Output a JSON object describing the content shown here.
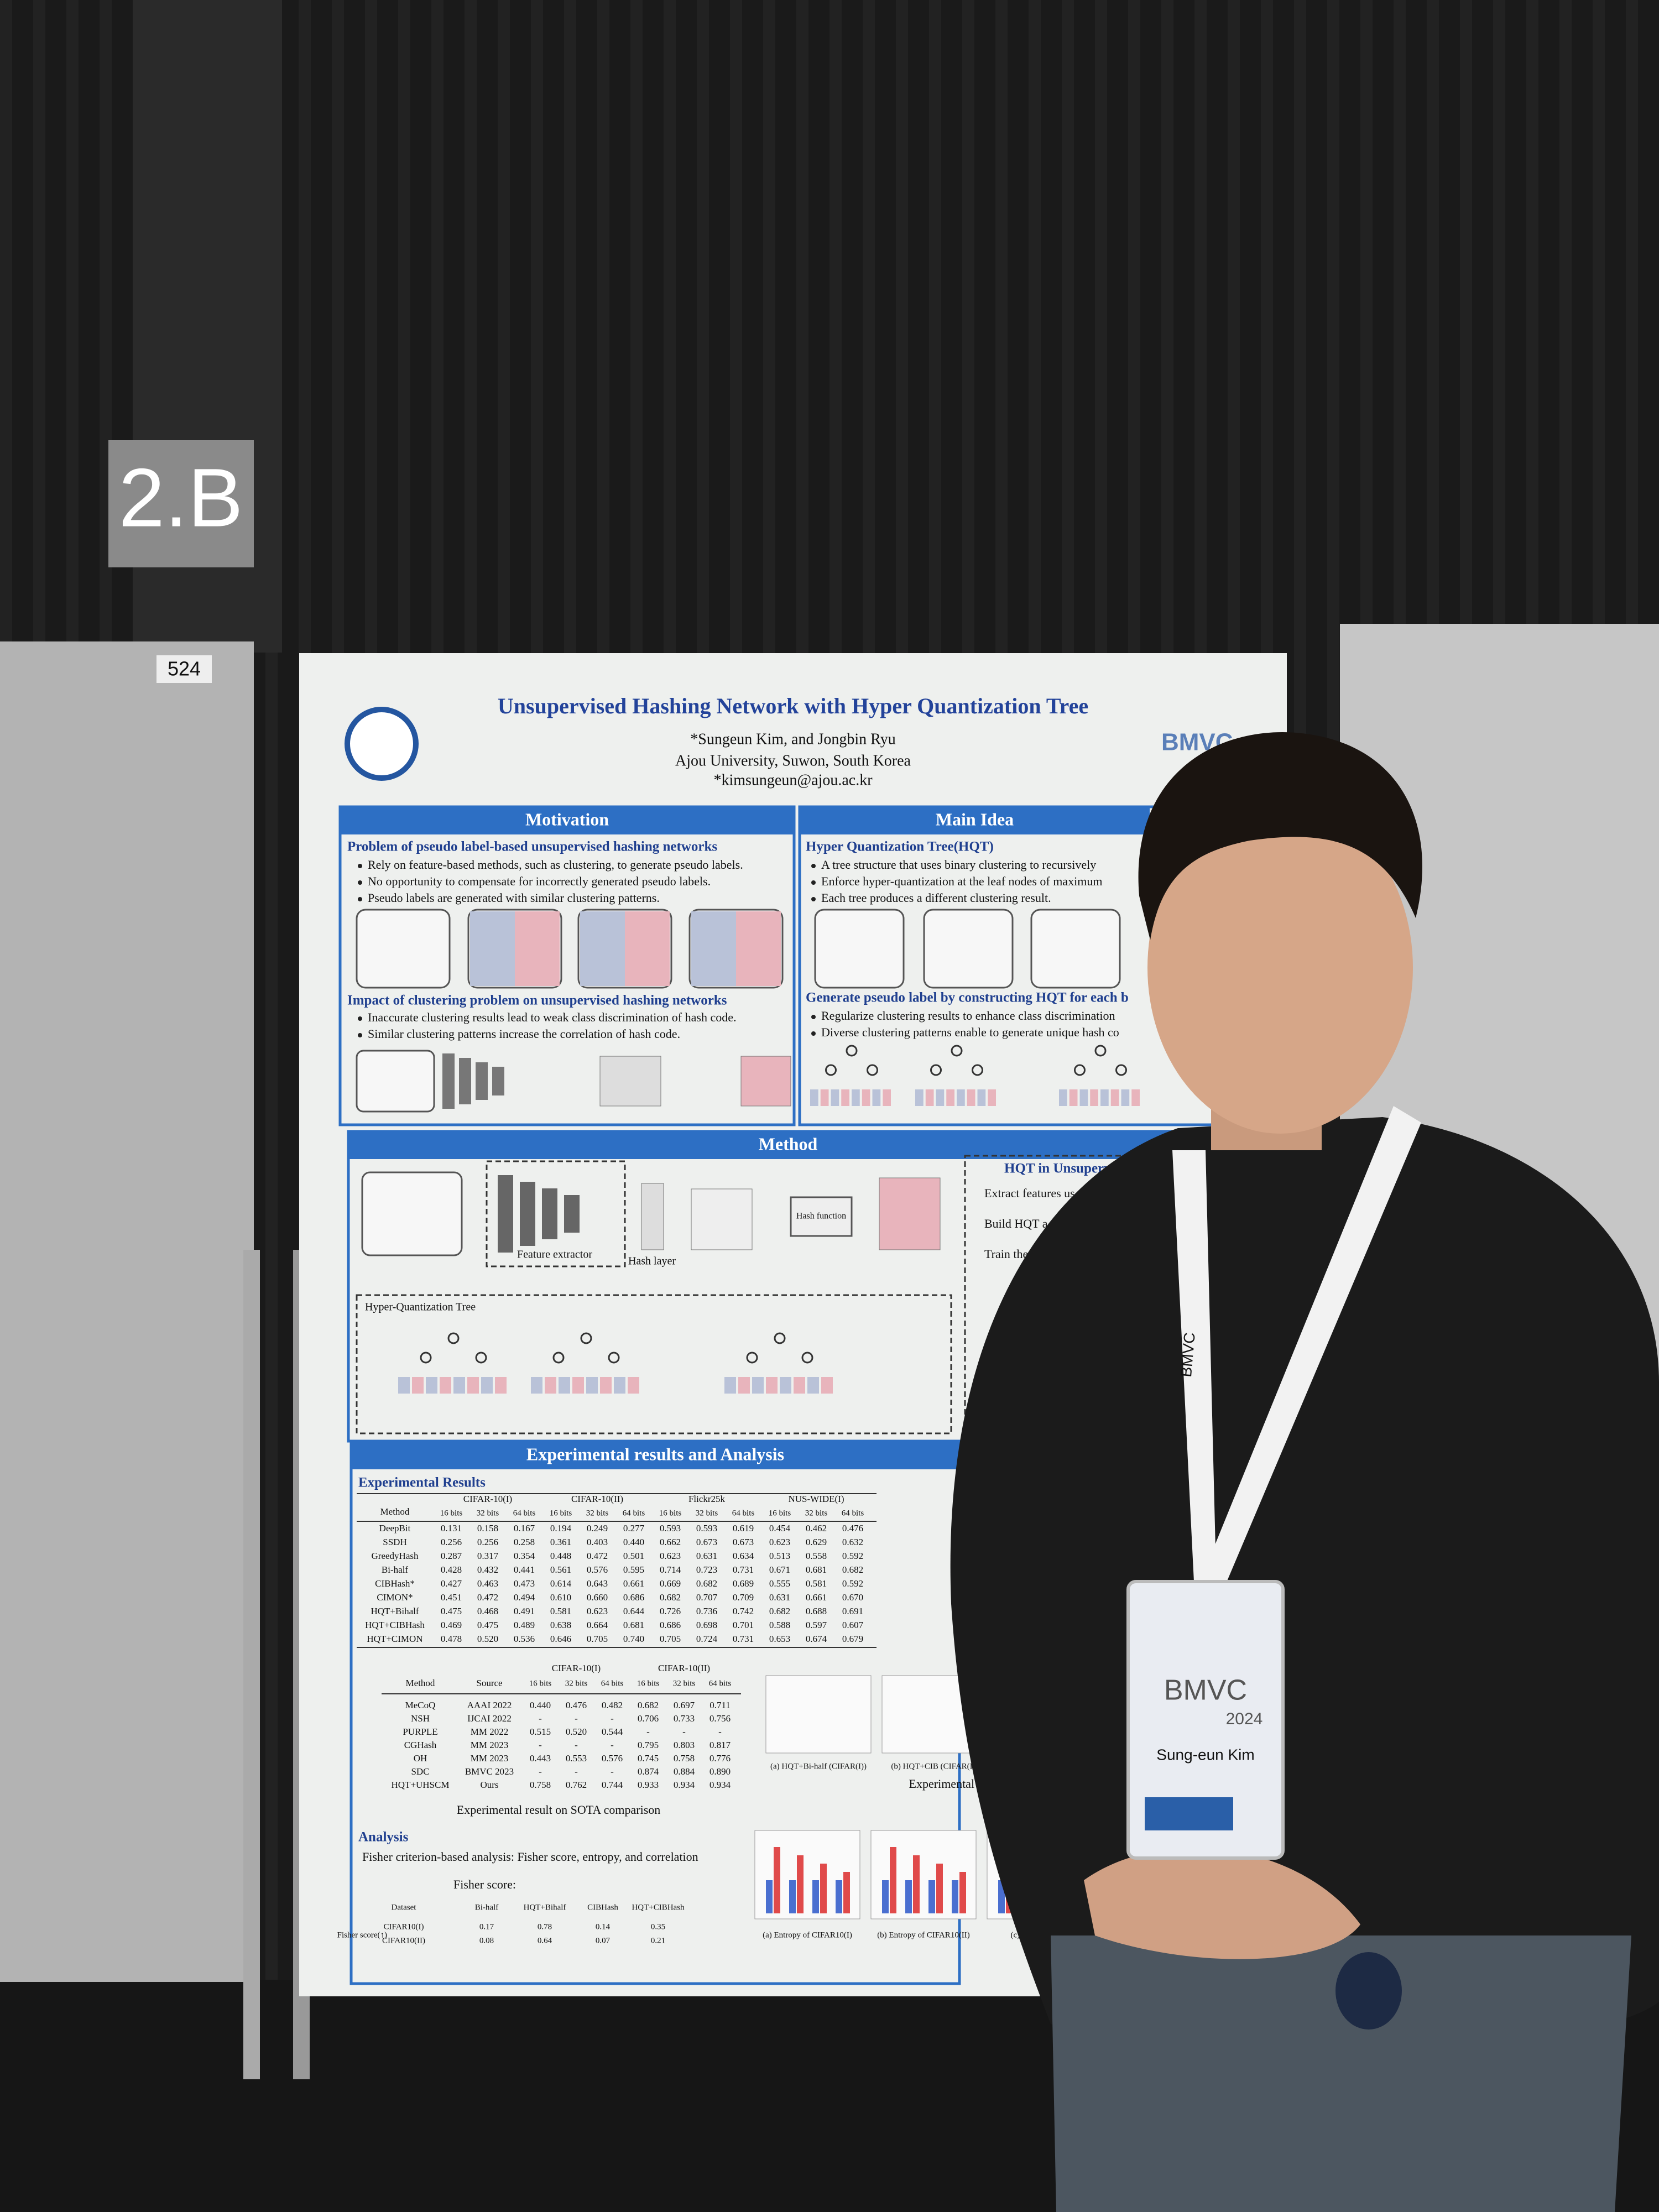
{
  "sign": {
    "room": "2.B",
    "board": "524"
  },
  "poster": {
    "title": "Unsupervised Hashing Network with Hyper Quantization Tree",
    "authors": "*Sungeun Kim, and Jongbin Ryu",
    "affiliation": "Ajou University, Suwon, South Korea",
    "email": "*kimsungeun@ajou.ac.kr",
    "logo": "BMVC",
    "motivation": {
      "heading": "Motivation",
      "sub1": "Problem of pseudo label-based unsupervised hashing networks",
      "bullets1": [
        "Rely on feature-based methods, such as clustering, to generate pseudo labels.",
        "No opportunity to compensate for incorrectly generated pseudo labels.",
        "Pseudo labels are generated with similar clustering patterns."
      ],
      "sub2": "Impact of clustering problem on unsupervised hashing networks",
      "bullets2": [
        "Inaccurate clustering results lead to weak class discrimination of hash code.",
        "Similar clustering patterns increase the correlation of hash code."
      ]
    },
    "main_idea": {
      "heading": "Main Idea",
      "sub1": "Hyper Quantization Tree(HQT)",
      "bullets1": [
        "A tree structure that uses binary clustering to recursively",
        "Enforce hyper-quantization at the leaf nodes of maximum",
        "Each tree produces a different clustering result."
      ],
      "sub2": "Generate pseudo label by constructing HQT for each b",
      "bullets2": [
        "Regularize clustering results to enhance class discrimination",
        "Diverse clustering patterns enable to generate unique hash co"
      ]
    },
    "method": {
      "heading": "Method",
      "feature_extractor": "Feature extractor",
      "hash_layer": "Hash layer",
      "hash_function": "Hash function",
      "tree": "Hyper-Quantization Tree",
      "side_heading": "HQT in Unsupervised",
      "side_items": [
        "Extract features us",
        "Build HQT a",
        "Train the"
      ]
    },
    "results": {
      "heading": "Experimental results and Analysis",
      "sub": "Experimental Results",
      "table1": {
        "method": "Method",
        "groups": [
          "CIFAR-10(I)",
          "CIFAR-10(II)",
          "Flickr25k",
          "NUS-WIDE(I)"
        ],
        "bits": [
          "16 bits",
          "32 bits",
          "64 bits"
        ],
        "rows": [
          [
            "DeepBit",
            "0.131",
            "0.158",
            "0.167",
            "0.194",
            "0.249",
            "0.277",
            "0.593",
            "0.593",
            "0.619",
            "0.454",
            "0.462",
            "0.476"
          ],
          [
            "SSDH",
            "0.256",
            "0.256",
            "0.258",
            "0.361",
            "0.403",
            "0.440",
            "0.662",
            "0.673",
            "0.673",
            "0.623",
            "0.629",
            "0.632"
          ],
          [
            "GreedyHash",
            "0.287",
            "0.317",
            "0.354",
            "0.448",
            "0.472",
            "0.501",
            "0.623",
            "0.631",
            "0.634",
            "0.513",
            "0.558",
            "0.592"
          ],
          [
            "Bi-half",
            "0.428",
            "0.432",
            "0.441",
            "0.561",
            "0.576",
            "0.595",
            "0.714",
            "0.723",
            "0.731",
            "0.671",
            "0.681",
            "0.682"
          ],
          [
            "CIBHash*",
            "0.427",
            "0.463",
            "0.473",
            "0.614",
            "0.643",
            "0.661",
            "0.669",
            "0.682",
            "0.689",
            "0.555",
            "0.581",
            "0.592"
          ],
          [
            "CIMON*",
            "0.451",
            "0.472",
            "0.494",
            "0.610",
            "0.660",
            "0.686",
            "0.682",
            "0.707",
            "0.709",
            "0.631",
            "0.661",
            "0.670"
          ],
          [
            "HQT+Bihalf",
            "0.475",
            "0.468",
            "0.491",
            "0.581",
            "0.623",
            "0.644",
            "0.726",
            "0.736",
            "0.742",
            "0.682",
            "0.688",
            "0.691"
          ],
          [
            "HQT+CIBHash",
            "0.469",
            "0.475",
            "0.489",
            "0.638",
            "0.664",
            "0.681",
            "0.686",
            "0.698",
            "0.701",
            "0.588",
            "0.597",
            "0.607"
          ],
          [
            "HQT+CIMON",
            "0.478",
            "0.520",
            "0.536",
            "0.646",
            "0.705",
            "0.740",
            "0.705",
            "0.724",
            "0.731",
            "0.653",
            "0.674",
            "0.679"
          ]
        ]
      },
      "table2": {
        "method": "Method",
        "source": "Source",
        "groups": [
          "CIFAR-10(I)",
          "CIFAR-10(II)"
        ],
        "bits": [
          "16 bits",
          "32 bits",
          "64 bits"
        ],
        "rows": [
          [
            "MeCoQ",
            "AAAI 2022",
            "0.440",
            "0.476",
            "0.482",
            "0.682",
            "0.697",
            "0.711"
          ],
          [
            "NSH",
            "IJCAI 2022",
            "-",
            "-",
            "-",
            "0.706",
            "0.733",
            "0.756"
          ],
          [
            "PURPLE",
            "MM 2022",
            "0.515",
            "0.520",
            "0.544",
            "-",
            "-",
            "-"
          ],
          [
            "CGHash",
            "MM 2023",
            "-",
            "-",
            "-",
            "0.795",
            "0.803",
            "0.817"
          ],
          [
            "OH",
            "MM 2023",
            "0.443",
            "0.553",
            "0.576",
            "0.745",
            "0.758",
            "0.776"
          ],
          [
            "SDC",
            "BMVC 2023",
            "-",
            "-",
            "-",
            "0.874",
            "0.884",
            "0.890"
          ],
          [
            "HQT+UHSCM",
            "Ours",
            "0.758",
            "0.762",
            "0.744",
            "0.933",
            "0.934",
            "0.934"
          ]
        ]
      },
      "caption": "Experimental result on SOTA comparison",
      "plot_captions": [
        "(a) HQT+Bi-half (CIFAR(I))",
        "(b) HQT+CIB (CIFAR(I))"
      ],
      "plot_title": "Experimental result",
      "analysis": {
        "heading": "Analysis",
        "text": "Fisher criterion-based analysis: Fisher score, entropy, and correlation",
        "formula_label": "Fisher score:",
        "table": {
          "header": [
            "Dataset",
            "Bi-half",
            "HQT+Bihalf",
            "CIBHash",
            "HQT+CIBHash"
          ],
          "row_label": "Fisher score(↑)",
          "rows": [
            [
              "CIFAR10(I)",
              "0.17",
              "0.78",
              "0.14",
              "0.35"
            ],
            [
              "CIFAR10(II)",
              "0.08",
              "0.64",
              "0.07",
              "0.21"
            ]
          ]
        },
        "captions": [
          "(a) Entropy of CIFAR10(I)",
          "(b) Entropy of CIFAR10(II)",
          "(c) Correlation of"
        ]
      }
    }
  },
  "lanyard": {
    "text": "BMVC",
    "badge": {
      "event": "BMVC",
      "year": "2024",
      "name": "Sung-eun Kim"
    }
  }
}
